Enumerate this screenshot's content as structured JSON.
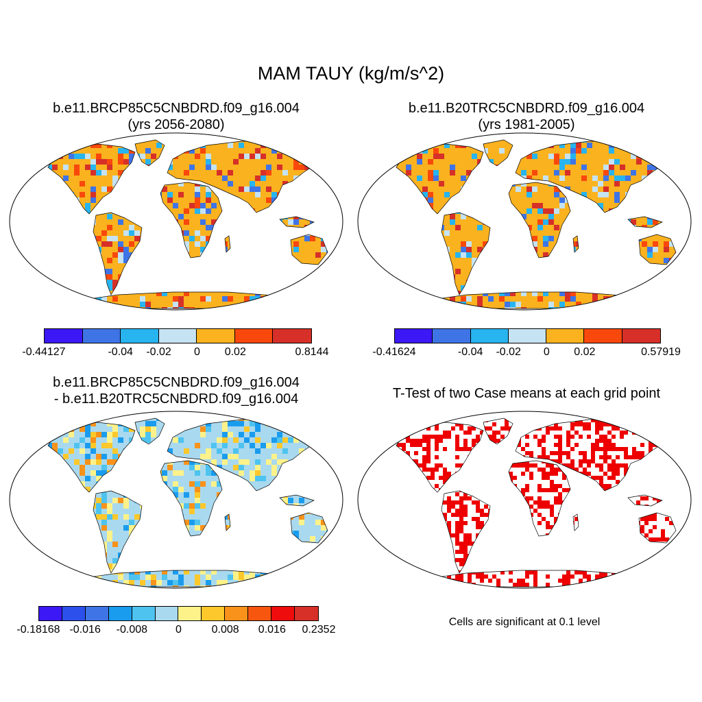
{
  "main_title": "MAM TAUY (kg/m/s^2)",
  "panels": {
    "p1": {
      "line1": "b.e11.BRCP85C5CNBDRD.f09_g16.004",
      "line2": "(yrs 2056-2080)"
    },
    "p2": {
      "line1": "b.e11.B20TRC5CNBDRD.f09_g16.004",
      "line2": "(yrs 1981-2005)"
    },
    "p3": {
      "line1": "b.e11.BRCP85C5CNBDRD.f09_g16.004",
      "line2": "- b.e11.B20TRC5CNBDRD.f09_g16.004"
    },
    "p4": {
      "line1": "T-Test of two Case means at each grid point"
    }
  },
  "colorbars": {
    "cb1": {
      "colors": [
        "#3b18f5",
        "#3f74e6",
        "#27b4ef",
        "#c5e3f2",
        "#fab21f",
        "#f9480c",
        "#d63029"
      ],
      "labels": [
        {
          "text": "-0.44127",
          "at": 0
        },
        {
          "text": "-0.04",
          "at": 2
        },
        {
          "text": "-0.02",
          "at": 3
        },
        {
          "text": "0",
          "at": 4
        },
        {
          "text": "0.02",
          "at": 5
        },
        {
          "text": "0.8144",
          "at": 7
        }
      ]
    },
    "cb2": {
      "colors": [
        "#3b18f5",
        "#3f74e6",
        "#27b4ef",
        "#c5e3f2",
        "#fab21f",
        "#f9480c",
        "#d63029"
      ],
      "labels": [
        {
          "text": "-0.41624",
          "at": 0
        },
        {
          "text": "-0.04",
          "at": 2
        },
        {
          "text": "-0.02",
          "at": 3
        },
        {
          "text": "0",
          "at": 4
        },
        {
          "text": "0.02",
          "at": 5
        },
        {
          "text": "0.57919",
          "at": 7
        }
      ]
    },
    "cb3": {
      "colors": [
        "#3b18f5",
        "#2b50ec",
        "#3f74e6",
        "#1a9cee",
        "#4ec3f0",
        "#a9d9ef",
        "#fdf28a",
        "#fdc82b",
        "#f8921a",
        "#f7560f",
        "#ef0c0c",
        "#d63029"
      ],
      "labels": [
        {
          "text": "-0.18168",
          "at": 0
        },
        {
          "text": "-0.016",
          "at": 2
        },
        {
          "text": "-0.008",
          "at": 4
        },
        {
          "text": "0",
          "at": 6
        },
        {
          "text": "0.008",
          "at": 8
        },
        {
          "text": "0.016",
          "at": 10
        },
        {
          "text": "0.2352",
          "at": 12
        }
      ]
    }
  },
  "significance_color": "#ee0000",
  "note": "Cells are significant at 0.1 level"
}
